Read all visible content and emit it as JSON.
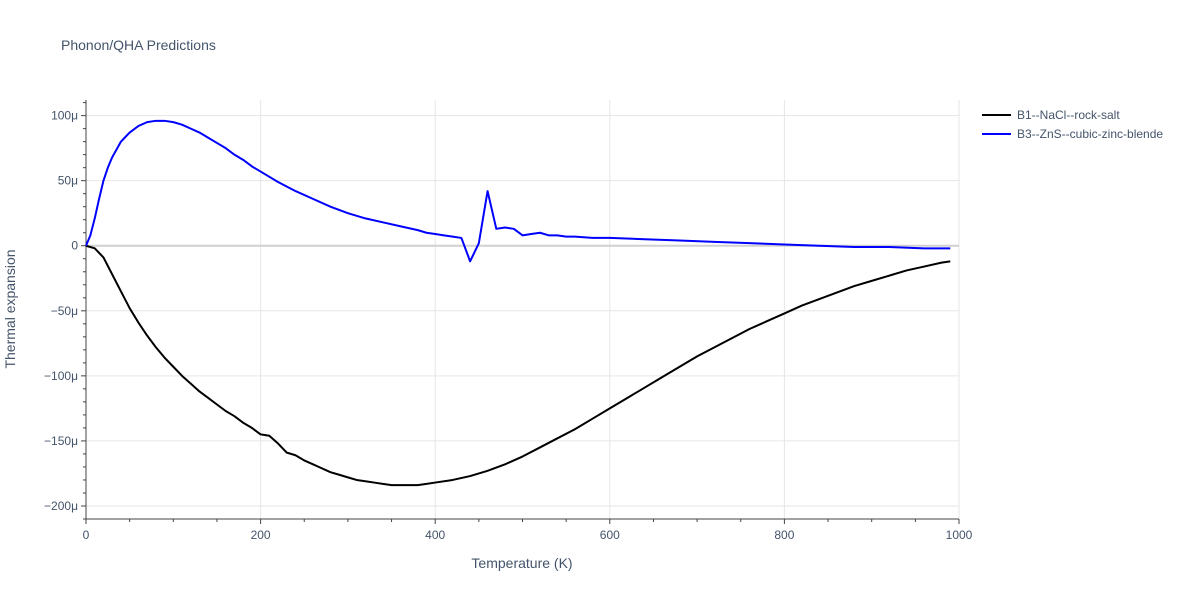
{
  "chart_data": {
    "type": "line",
    "title": "Phonon/QHA Predictions",
    "xlabel": "Temperature (K)",
    "ylabel": "Thermal expansion",
    "xlim": [
      0,
      1000
    ],
    "ylim": [
      -0.00021,
      0.000112
    ],
    "x_ticks": [
      0,
      200,
      400,
      600,
      800,
      1000
    ],
    "x_tick_labels": [
      "0",
      "200",
      "400",
      "600",
      "800",
      "1000"
    ],
    "y_ticks": [
      0.0001,
      5e-05,
      0,
      -5e-05,
      -0.0001,
      -0.00015,
      -0.0002
    ],
    "y_tick_labels": [
      "100μ",
      "50μ",
      "0",
      "−50μ",
      "−100μ",
      "−150μ",
      "−200μ"
    ],
    "grid": true,
    "legend_position": "top-right",
    "series": [
      {
        "name": "B1--NaCl--rock-salt",
        "color": "#000000",
        "x": [
          0,
          10,
          20,
          30,
          40,
          50,
          60,
          70,
          80,
          90,
          100,
          110,
          120,
          130,
          140,
          150,
          160,
          170,
          180,
          190,
          200,
          210,
          220,
          230,
          240,
          250,
          260,
          270,
          280,
          290,
          300,
          310,
          320,
          330,
          340,
          350,
          360,
          370,
          380,
          390,
          400,
          420,
          440,
          460,
          480,
          500,
          520,
          540,
          560,
          580,
          600,
          620,
          640,
          660,
          680,
          700,
          720,
          740,
          760,
          780,
          800,
          820,
          840,
          860,
          880,
          900,
          920,
          940,
          960,
          980,
          990
        ],
        "y": [
          0,
          -2e-06,
          -9e-06,
          -2.2e-05,
          -3.5e-05,
          -4.8e-05,
          -5.9e-05,
          -6.9e-05,
          -7.8e-05,
          -8.6e-05,
          -9.3e-05,
          -0.0001,
          -0.000106,
          -0.000112,
          -0.000117,
          -0.000122,
          -0.000127,
          -0.000131,
          -0.000136,
          -0.00014,
          -0.000145,
          -0.000146,
          -0.000152,
          -0.000159,
          -0.000161,
          -0.000165,
          -0.000168,
          -0.000171,
          -0.000174,
          -0.000176,
          -0.000178,
          -0.00018,
          -0.000181,
          -0.000182,
          -0.000183,
          -0.000184,
          -0.000184,
          -0.000184,
          -0.000184,
          -0.000183,
          -0.000182,
          -0.00018,
          -0.000177,
          -0.000173,
          -0.000168,
          -0.000162,
          -0.000155,
          -0.000148,
          -0.000141,
          -0.000133,
          -0.000125,
          -0.000117,
          -0.000109,
          -0.000101,
          -9.3e-05,
          -8.5e-05,
          -7.8e-05,
          -7.1e-05,
          -6.4e-05,
          -5.8e-05,
          -5.2e-05,
          -4.6e-05,
          -4.1e-05,
          -3.6e-05,
          -3.1e-05,
          -2.7e-05,
          -2.3e-05,
          -1.9e-05,
          -1.6e-05,
          -1.3e-05,
          -1.2e-05
        ]
      },
      {
        "name": "B3--ZnS--cubic-zinc-blende",
        "color": "#0000ff",
        "x": [
          0,
          5,
          10,
          15,
          20,
          25,
          30,
          35,
          40,
          50,
          60,
          70,
          80,
          90,
          100,
          110,
          120,
          130,
          140,
          150,
          160,
          170,
          180,
          190,
          200,
          220,
          240,
          260,
          280,
          300,
          320,
          340,
          360,
          380,
          390,
          400,
          410,
          420,
          430,
          440,
          450,
          460,
          470,
          480,
          490,
          500,
          510,
          520,
          530,
          540,
          550,
          560,
          580,
          600,
          640,
          680,
          720,
          760,
          800,
          840,
          880,
          920,
          960,
          990
        ],
        "y": [
          0,
          8e-06,
          2.1e-05,
          3.6e-05,
          5e-05,
          6e-05,
          6.8e-05,
          7.4e-05,
          8e-05,
          8.7e-05,
          9.2e-05,
          9.5e-05,
          9.6e-05,
          9.6e-05,
          9.5e-05,
          9.3e-05,
          9e-05,
          8.7e-05,
          8.3e-05,
          7.9e-05,
          7.5e-05,
          7e-05,
          6.6e-05,
          6.1e-05,
          5.7e-05,
          4.9e-05,
          4.2e-05,
          3.6e-05,
          3e-05,
          2.5e-05,
          2.1e-05,
          1.8e-05,
          1.5e-05,
          1.2e-05,
          1e-05,
          9e-06,
          8e-06,
          7e-06,
          6e-06,
          -1.2e-05,
          2e-06,
          4.2e-05,
          1.3e-05,
          1.4e-05,
          1.3e-05,
          8e-06,
          9e-06,
          1e-05,
          8e-06,
          8e-06,
          7e-06,
          7e-06,
          6e-06,
          6e-06,
          5e-06,
          4e-06,
          3e-06,
          2e-06,
          1e-06,
          0,
          -1e-06,
          -1e-06,
          -2e-06,
          -2e-06
        ]
      }
    ]
  }
}
